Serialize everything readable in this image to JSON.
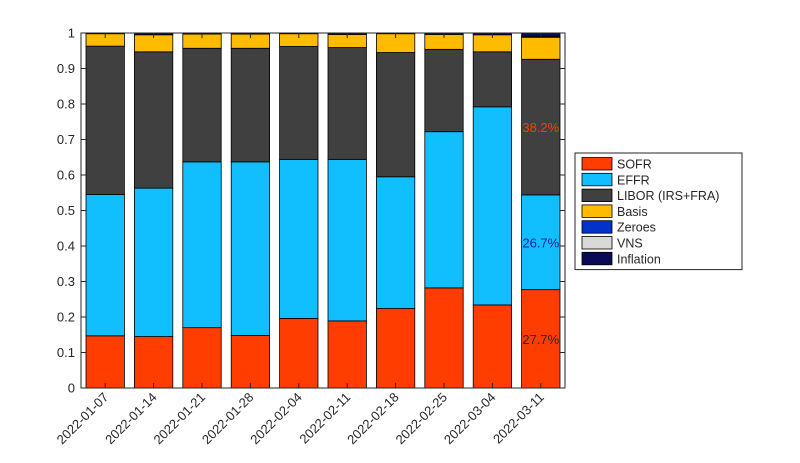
{
  "chart_data": {
    "type": "bar",
    "stacked": true,
    "title": "",
    "xlabel": "",
    "ylabel": "",
    "ylim": [
      0,
      1
    ],
    "yticks": [
      "0",
      "0.1",
      "0.2",
      "0.3",
      "0.4",
      "0.5",
      "0.6",
      "0.7",
      "0.8",
      "0.9",
      "1"
    ],
    "legend_position": "right",
    "categories": [
      "2022-01-07",
      "2022-01-14",
      "2022-01-21",
      "2022-01-28",
      "2022-02-04",
      "2022-02-11",
      "2022-02-18",
      "2022-02-25",
      "2022-03-04",
      "2022-03-11"
    ],
    "series": [
      {
        "name": "SOFR",
        "color": "#ff3d00",
        "values": [
          0.147,
          0.145,
          0.17,
          0.148,
          0.196,
          0.189,
          0.224,
          0.282,
          0.234,
          0.277
        ]
      },
      {
        "name": "EFFR",
        "color": "#11bfff",
        "values": [
          0.398,
          0.418,
          0.467,
          0.489,
          0.448,
          0.455,
          0.371,
          0.44,
          0.558,
          0.267
        ]
      },
      {
        "name": "LIBOR (IRS+FRA)",
        "color": "#404040",
        "values": [
          0.418,
          0.384,
          0.32,
          0.32,
          0.318,
          0.315,
          0.35,
          0.232,
          0.155,
          0.382
        ]
      },
      {
        "name": "Basis",
        "color": "#ffbb00",
        "values": [
          0.035,
          0.048,
          0.04,
          0.04,
          0.036,
          0.037,
          0.053,
          0.042,
          0.048,
          0.062
        ]
      },
      {
        "name": "Zeroes",
        "color": "#0033cc",
        "values": [
          0,
          0,
          0,
          0,
          0,
          0,
          0,
          0,
          0,
          0.002
        ]
      },
      {
        "name": "VNS",
        "color": "#d9d9d9",
        "values": [
          0,
          0,
          0,
          0,
          0,
          0,
          0,
          0,
          0,
          0
        ]
      },
      {
        "name": "Inflation",
        "color": "#0a0a55",
        "values": [
          0.002,
          0.005,
          0.003,
          0.003,
          0.002,
          0.004,
          0.002,
          0.004,
          0.005,
          0.01
        ]
      }
    ],
    "annotations": [
      {
        "text": "27.7%",
        "bar_index": 9,
        "series": "SOFR",
        "color": "#262626"
      },
      {
        "text": "26.7%",
        "bar_index": 9,
        "series": "EFFR",
        "color": "#1a1a99"
      },
      {
        "text": "38.2%",
        "bar_index": 9,
        "series": "LIBOR (IRS+FRA)",
        "color": "#ff3d00"
      }
    ]
  }
}
